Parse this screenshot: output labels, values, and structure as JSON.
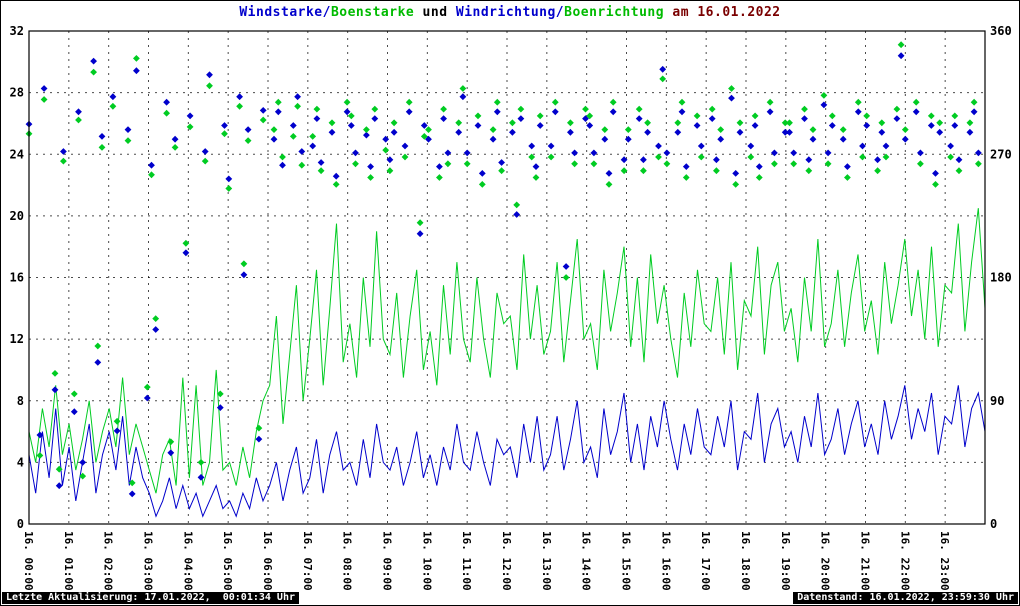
{
  "title": {
    "segments": [
      {
        "text": "Windstarke/",
        "color": "#0000cc"
      },
      {
        "text": "Boenstarke",
        "color": "#00bb00"
      },
      {
        "text": " und ",
        "color": "#000000"
      },
      {
        "text": "Windrichtung/",
        "color": "#0000cc"
      },
      {
        "text": "Boenrichtung",
        "color": "#00bb00"
      },
      {
        "text": " am 16.01.2022",
        "color": "#7a0000"
      }
    ]
  },
  "footer": {
    "left": "Letzte Aktualisierung: 17.01.2022,  00:01:34 Uhr",
    "right": "Datenstand: 16.01.2022, 23:59:30 Uhr"
  },
  "chart_data": {
    "type": "line",
    "title": "Windstarke/Boenstarke und Windrichtung/Boenrichtung am 16.01.2022",
    "grid": {
      "vertical": "hourly dashed",
      "horizontal": "every 4 units dashed"
    },
    "x_axis": {
      "range_hours": [
        0,
        24
      ],
      "labels": [
        "16. 00:00",
        "16. 01:00",
        "16. 02:00",
        "16. 03:00",
        "16. 04:00",
        "16. 05:00",
        "16. 06:00",
        "16. 07:00",
        "16. 08:00",
        "16. 09:00",
        "16. 10:00",
        "16. 11:00",
        "16. 12:00",
        "16. 13:00",
        "16. 14:00",
        "16. 15:00",
        "16. 16:00",
        "16. 17:00",
        "16. 18:00",
        "16. 19:00",
        "16. 20:00",
        "16. 21:00",
        "16. 22:00",
        "16. 23:00"
      ]
    },
    "y_left": {
      "range": [
        0,
        32
      ],
      "ticks": [
        0,
        4,
        8,
        12,
        16,
        20,
        24,
        28,
        32
      ]
    },
    "y_right": {
      "range": [
        0,
        360
      ],
      "ticks": [
        0,
        90,
        180,
        270,
        360
      ]
    },
    "series": [
      {
        "name": "Boenstarke",
        "type": "line",
        "axis": "left",
        "color": "#00cc22",
        "values": [
          6.0,
          4.0,
          7.5,
          5.0,
          9.0,
          4.5,
          6.5,
          3.5,
          5.5,
          8.0,
          4.0,
          6.0,
          7.5,
          5.0,
          9.5,
          4.5,
          6.5,
          5.0,
          3.5,
          2.0,
          4.5,
          5.5,
          2.5,
          9.5,
          3.0,
          9.0,
          2.5,
          4.0,
          10.0,
          3.5,
          4.0,
          2.5,
          5.0,
          3.0,
          6.0,
          8.0,
          9.0,
          13.5,
          6.5,
          11.0,
          15.5,
          8.0,
          12.0,
          16.5,
          9.0,
          14.0,
          19.5,
          10.5,
          13.0,
          9.5,
          16.0,
          11.5,
          19.0,
          12.0,
          11.0,
          15.0,
          9.5,
          13.5,
          16.5,
          10.0,
          12.5,
          9.0,
          15.5,
          11.0,
          17.0,
          12.0,
          10.5,
          16.0,
          12.0,
          9.5,
          15.0,
          13.0,
          13.5,
          10.0,
          17.5,
          12.0,
          15.5,
          11.0,
          12.5,
          17.0,
          10.5,
          14.5,
          18.5,
          12.0,
          13.0,
          10.0,
          16.5,
          12.5,
          15.0,
          18.0,
          11.5,
          16.0,
          10.5,
          17.5,
          13.0,
          15.5,
          12.0,
          9.5,
          15.0,
          11.5,
          16.5,
          13.0,
          12.5,
          16.0,
          11.0,
          17.0,
          10.0,
          14.5,
          13.5,
          18.0,
          11.0,
          15.5,
          17.0,
          12.5,
          14.0,
          10.5,
          16.0,
          12.5,
          18.5,
          11.5,
          13.0,
          16.5,
          11.5,
          15.0,
          17.5,
          12.5,
          14.5,
          11.0,
          17.0,
          13.0,
          15.5,
          18.5,
          13.5,
          16.5,
          12.0,
          18.0,
          11.5,
          15.5,
          15.0,
          19.5,
          12.5,
          17.0,
          20.5,
          14.0
        ]
      },
      {
        "name": "Windstarke",
        "type": "line",
        "axis": "left",
        "color": "#0000cc",
        "values": [
          4.5,
          2.0,
          6.0,
          3.0,
          7.5,
          2.5,
          5.0,
          1.5,
          4.0,
          6.5,
          2.0,
          4.5,
          6.0,
          3.5,
          7.0,
          2.5,
          5.0,
          3.0,
          2.0,
          0.5,
          1.5,
          3.0,
          1.0,
          2.5,
          1.0,
          2.0,
          0.5,
          1.5,
          2.5,
          1.0,
          1.5,
          0.5,
          2.0,
          1.0,
          3.0,
          1.5,
          2.5,
          4.0,
          1.5,
          3.5,
          5.0,
          2.0,
          3.0,
          5.5,
          2.0,
          4.5,
          6.0,
          3.5,
          4.0,
          2.5,
          5.5,
          3.0,
          6.5,
          4.0,
          3.5,
          5.0,
          2.5,
          4.0,
          6.0,
          3.0,
          4.5,
          2.5,
          5.0,
          3.5,
          6.5,
          4.0,
          3.5,
          6.0,
          4.0,
          2.5,
          5.5,
          4.5,
          5.0,
          3.0,
          6.5,
          4.0,
          7.0,
          3.5,
          4.5,
          7.0,
          3.5,
          5.5,
          8.0,
          4.0,
          5.0,
          3.0,
          7.5,
          4.5,
          6.0,
          8.5,
          4.0,
          6.5,
          3.5,
          7.0,
          5.0,
          8.0,
          5.5,
          3.5,
          6.5,
          4.5,
          7.5,
          5.0,
          4.5,
          7.0,
          5.0,
          8.0,
          3.5,
          6.0,
          5.5,
          8.5,
          4.0,
          6.5,
          7.5,
          5.0,
          6.0,
          4.0,
          7.0,
          5.0,
          8.5,
          4.5,
          5.5,
          7.5,
          4.5,
          6.5,
          8.0,
          5.0,
          6.5,
          4.5,
          8.0,
          5.5,
          7.0,
          9.0,
          5.5,
          7.5,
          6.0,
          8.5,
          4.5,
          7.0,
          6.5,
          9.0,
          5.0,
          7.5,
          8.5,
          6.0
        ]
      },
      {
        "name": "Windrichtung",
        "type": "scatter",
        "marker": "diamond",
        "axis": "right",
        "color": "#0000cc",
        "values": [
          292,
          65,
          318,
          98,
          28,
          272,
          82,
          301,
          45,
          338,
          118,
          283,
          312,
          68,
          288,
          22,
          331,
          92,
          262,
          142,
          308,
          52,
          281,
          198,
          298,
          34,
          272,
          328,
          85,
          291,
          252,
          312,
          182,
          288,
          62,
          302,
          281,
          301,
          262,
          291,
          312,
          272,
          276,
          296,
          264,
          286,
          254,
          301,
          291,
          271,
          284,
          261,
          296,
          281,
          266,
          286,
          276,
          301,
          212,
          291,
          281,
          261,
          296,
          271,
          286,
          312,
          271,
          291,
          256,
          281,
          301,
          264,
          286,
          226,
          296,
          276,
          261,
          291,
          276,
          301,
          188,
          286,
          271,
          296,
          291,
          271,
          281,
          256,
          301,
          266,
          281,
          296,
          266,
          286,
          276,
          332,
          271,
          286,
          301,
          261,
          291,
          276,
          296,
          266,
          281,
          311,
          256,
          286,
          276,
          291,
          261,
          301,
          271,
          286,
          286,
          271,
          296,
          266,
          281,
          306,
          271,
          291,
          281,
          261,
          301,
          276,
          291,
          266,
          286,
          276,
          296,
          342,
          281,
          301,
          271,
          291,
          256,
          286,
          276,
          291,
          266,
          286,
          301,
          271
        ]
      },
      {
        "name": "Boenrichtung",
        "type": "scatter",
        "marker": "diamond",
        "axis": "right",
        "color": "#00cc22",
        "values": [
          285,
          50,
          310,
          110,
          40,
          265,
          95,
          295,
          35,
          330,
          130,
          275,
          305,
          75,
          280,
          30,
          340,
          100,
          255,
          150,
          300,
          60,
          275,
          205,
          290,
          45,
          265,
          320,
          95,
          285,
          245,
          305,
          190,
          280,
          70,
          295,
          288,
          308,
          268,
          283,
          305,
          262,
          283,
          303,
          258,
          293,
          248,
          308,
          298,
          263,
          288,
          253,
          303,
          273,
          258,
          293,
          268,
          308,
          220,
          283,
          288,
          253,
          303,
          263,
          293,
          318,
          263,
          298,
          248,
          288,
          308,
          258,
          293,
          233,
          303,
          268,
          253,
          298,
          268,
          308,
          180,
          293,
          263,
          303,
          298,
          263,
          288,
          248,
          308,
          258,
          288,
          303,
          258,
          293,
          268,
          325,
          263,
          293,
          308,
          253,
          298,
          268,
          303,
          258,
          288,
          318,
          248,
          293,
          268,
          298,
          253,
          308,
          263,
          293,
          293,
          263,
          303,
          258,
          288,
          313,
          263,
          298,
          288,
          253,
          308,
          268,
          298,
          258,
          293,
          268,
          303,
          350,
          288,
          308,
          263,
          298,
          248,
          293,
          268,
          298,
          258,
          293,
          308,
          263
        ]
      }
    ]
  }
}
